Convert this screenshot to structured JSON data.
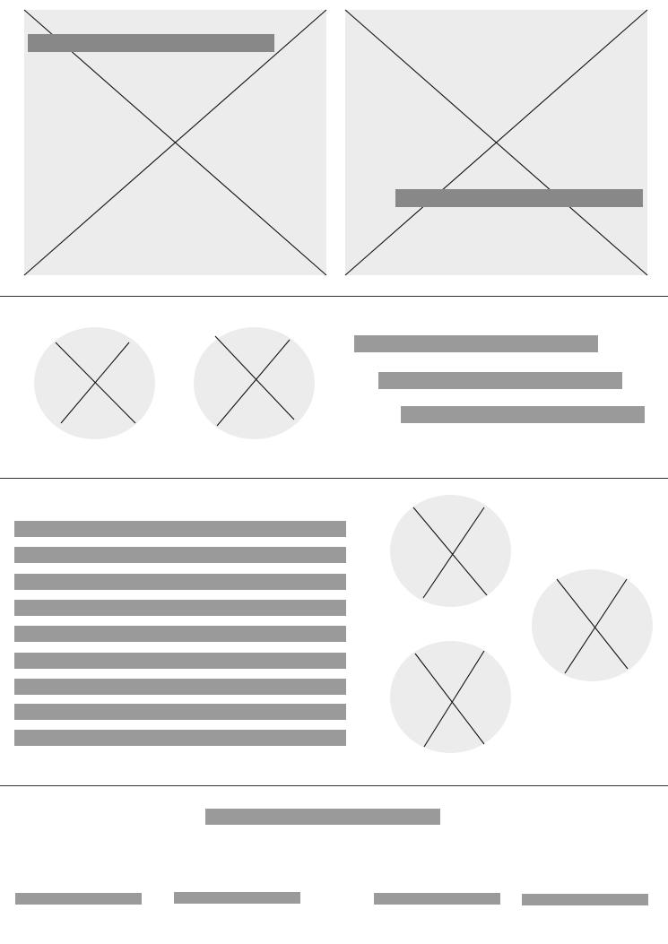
{
  "wireframe": {
    "colors": {
      "placeholder_fill": "#ececec",
      "placeholder_cross": "#111111",
      "text_bar_dark": "#888888",
      "text_bar": "#999999",
      "divider": "#333333",
      "background": "#ffffff"
    },
    "hero": {
      "image_left": {
        "icon": "image-placeholder-icon"
      },
      "image_right": {
        "icon": "image-placeholder-icon"
      },
      "caption_left": "",
      "caption_right": ""
    },
    "features": {
      "avatars": [
        "image-placeholder-icon",
        "image-placeholder-icon"
      ],
      "text_lines": [
        "",
        "",
        ""
      ]
    },
    "content": {
      "paragraph_lines": [
        "",
        "",
        "",
        "",
        "",
        "",
        "",
        "",
        ""
      ],
      "thumbnails": [
        "image-placeholder-icon",
        "image-placeholder-icon",
        "image-placeholder-icon"
      ]
    },
    "footer": {
      "heading": "",
      "links": [
        "",
        "",
        "",
        ""
      ]
    }
  }
}
